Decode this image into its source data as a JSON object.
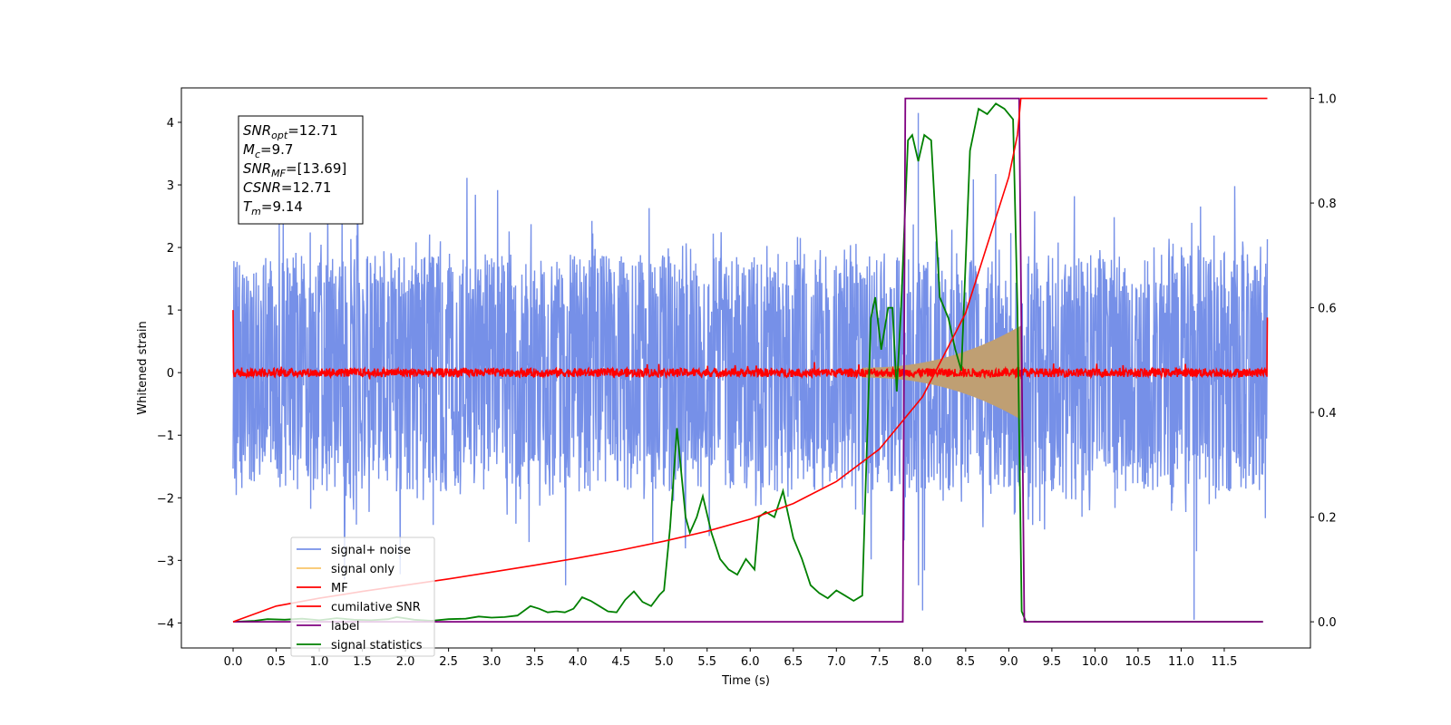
{
  "chart_data": {
    "type": "line",
    "title": "",
    "xlabel": "Time (s)",
    "ylabel": "Whitened strain",
    "xlim": [
      -0.6,
      12.5
    ],
    "ylim": [
      -4.4,
      4.55
    ],
    "y2lim": [
      -0.05,
      1.02
    ],
    "x_ticks": [
      "0.0",
      "0.5",
      "1.0",
      "1.5",
      "2.0",
      "2.5",
      "3.0",
      "3.5",
      "4.0",
      "4.5",
      "5.0",
      "5.5",
      "6.0",
      "6.5",
      "7.0",
      "7.5",
      "8.0",
      "8.5",
      "9.0",
      "9.5",
      "10.0",
      "10.5",
      "11.0",
      "11.5"
    ],
    "y_ticks": [
      "4",
      "3",
      "2",
      "1",
      "0",
      "−1",
      "−2",
      "−3",
      "−4"
    ],
    "y2_ticks": [
      "1.0",
      "0.8",
      "0.6",
      "0.4",
      "0.2",
      "0.0"
    ],
    "grid": false,
    "legend_position": "lower-left",
    "annotations": [
      {
        "symbol": "SNR",
        "subscript": "opt",
        "value": "=12.71"
      },
      {
        "symbol": "M",
        "subscript": "c",
        "value": "=9.7"
      },
      {
        "symbol": "SNR",
        "subscript": "MF",
        "value": "=[13.69]"
      },
      {
        "symbol": "CSNR",
        "subscript": "",
        "value": "=12.71"
      },
      {
        "symbol": "T",
        "subscript": "m",
        "value": "=9.14"
      }
    ],
    "series": [
      {
        "name": "signal+ noise",
        "color": "#7690e8",
        "axis": "left",
        "description_values": {
          "x_range": [
            0.0,
            12.0
          ],
          "noise_sigma": 1.0,
          "typical_peak": 2.6,
          "outlier_points": [
            [
              7.95,
              4.15
            ],
            [
              11.15,
              -3.95
            ],
            [
              8.0,
              -3.8
            ]
          ]
        }
      },
      {
        "name": "signal only",
        "color": "#f8c56a",
        "axis": "left",
        "description_values": {
          "chirp_start": 7.3,
          "chirp_end": 9.14,
          "peak_amplitude": 0.75
        }
      },
      {
        "name": "MF",
        "color": "#ff0000",
        "axis": "left",
        "description_values": {
          "baseline": 0.0,
          "jitter": 0.07,
          "edge_values": [
            1.0,
            0.88
          ]
        }
      },
      {
        "name": "cumilative SNR",
        "color": "#ff0000",
        "axis": "right",
        "x": [
          0.0,
          0.5,
          1.0,
          1.5,
          2.0,
          2.5,
          3.0,
          3.5,
          4.0,
          4.5,
          5.0,
          5.5,
          6.0,
          6.5,
          7.0,
          7.5,
          8.0,
          8.5,
          9.0,
          9.1,
          9.14,
          12.0
        ],
        "values": [
          0.0,
          0.03,
          0.045,
          0.058,
          0.07,
          0.082,
          0.095,
          0.108,
          0.122,
          0.137,
          0.154,
          0.173,
          0.196,
          0.226,
          0.268,
          0.33,
          0.43,
          0.59,
          0.85,
          0.93,
          1.0,
          1.0
        ]
      },
      {
        "name": "label",
        "color": "#800080",
        "axis": "right",
        "x": [
          0.0,
          7.77,
          7.8,
          9.12,
          9.18,
          11.95
        ],
        "values": [
          0.0,
          0.0,
          1.0,
          1.0,
          0.0,
          0.0
        ]
      },
      {
        "name": "signal statistics",
        "color": "#008000",
        "axis": "right",
        "x": [
          0.0,
          0.25,
          0.4,
          0.6,
          0.8,
          1.0,
          1.2,
          1.4,
          1.6,
          1.8,
          1.9,
          2.1,
          2.3,
          2.5,
          2.7,
          2.85,
          3.0,
          3.15,
          3.3,
          3.45,
          3.55,
          3.65,
          3.75,
          3.85,
          3.95,
          4.05,
          4.15,
          4.25,
          4.35,
          4.45,
          4.55,
          4.65,
          4.75,
          4.85,
          4.95,
          5.0,
          5.07,
          5.15,
          5.25,
          5.3,
          5.38,
          5.45,
          5.55,
          5.65,
          5.75,
          5.85,
          5.95,
          6.05,
          6.1,
          6.18,
          6.28,
          6.38,
          6.5,
          6.6,
          6.7,
          6.8,
          6.9,
          7.0,
          7.1,
          7.2,
          7.3,
          7.4,
          7.45,
          7.52,
          7.6,
          7.65,
          7.7,
          7.75,
          7.83,
          7.88,
          7.95,
          8.02,
          8.1,
          8.2,
          8.3,
          8.38,
          8.45,
          8.55,
          8.65,
          8.75,
          8.85,
          8.95,
          9.05,
          9.1,
          9.15,
          9.2,
          11.95
        ],
        "values": [
          0.0,
          0.002,
          0.005,
          0.004,
          0.006,
          0.003,
          0.007,
          0.004,
          0.003,
          0.005,
          0.009,
          0.004,
          0.002,
          0.005,
          0.006,
          0.01,
          0.008,
          0.009,
          0.012,
          0.03,
          0.025,
          0.018,
          0.02,
          0.018,
          0.025,
          0.047,
          0.04,
          0.03,
          0.02,
          0.018,
          0.042,
          0.058,
          0.038,
          0.03,
          0.052,
          0.06,
          0.18,
          0.37,
          0.2,
          0.17,
          0.2,
          0.24,
          0.17,
          0.12,
          0.1,
          0.09,
          0.12,
          0.1,
          0.2,
          0.21,
          0.2,
          0.25,
          0.16,
          0.12,
          0.07,
          0.055,
          0.045,
          0.06,
          0.05,
          0.04,
          0.05,
          0.58,
          0.62,
          0.52,
          0.6,
          0.6,
          0.44,
          0.6,
          0.92,
          0.93,
          0.88,
          0.93,
          0.92,
          0.62,
          0.58,
          0.52,
          0.48,
          0.9,
          0.98,
          0.97,
          0.99,
          0.98,
          0.96,
          0.6,
          0.02,
          0.0,
          0.0
        ]
      }
    ]
  }
}
